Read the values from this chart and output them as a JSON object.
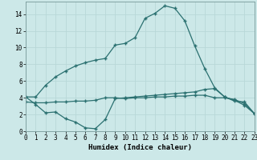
{
  "xlabel": "Humidex (Indice chaleur)",
  "bg_color": "#cce8e8",
  "grid_color": "#b8d8d8",
  "line_color": "#2a7070",
  "line1_x": [
    0,
    1,
    2,
    3,
    4,
    5,
    6,
    7,
    8,
    9,
    10,
    11,
    12,
    13,
    14,
    15,
    16,
    17,
    18,
    19,
    20,
    21,
    22,
    23
  ],
  "line1_y": [
    4.1,
    4.1,
    5.5,
    6.5,
    7.2,
    7.8,
    8.2,
    8.5,
    8.7,
    10.3,
    10.5,
    11.2,
    13.5,
    14.1,
    15.0,
    14.7,
    13.2,
    10.2,
    7.5,
    5.2,
    4.1,
    3.7,
    3.1,
    2.1
  ],
  "line2_x": [
    0,
    1,
    2,
    3,
    4,
    5,
    6,
    7,
    8,
    9,
    10,
    11,
    12,
    13,
    14,
    15,
    16,
    17,
    18,
    19,
    20,
    21,
    22,
    23
  ],
  "line2_y": [
    4.1,
    3.2,
    2.2,
    2.3,
    1.5,
    1.1,
    0.4,
    0.3,
    1.4,
    3.9,
    4.0,
    4.1,
    4.2,
    4.3,
    4.4,
    4.5,
    4.6,
    4.7,
    5.0,
    5.1,
    4.1,
    3.6,
    3.5,
    2.1
  ],
  "line3_x": [
    0,
    1,
    2,
    3,
    4,
    5,
    6,
    7,
    8,
    9,
    10,
    11,
    12,
    13,
    14,
    15,
    16,
    17,
    18,
    19,
    20,
    21,
    22,
    23
  ],
  "line3_y": [
    3.5,
    3.4,
    3.4,
    3.5,
    3.5,
    3.6,
    3.6,
    3.7,
    4.0,
    4.0,
    3.9,
    4.0,
    4.0,
    4.1,
    4.1,
    4.2,
    4.2,
    4.3,
    4.3,
    4.0,
    4.0,
    3.8,
    3.3,
    2.1
  ],
  "xlim": [
    0,
    23
  ],
  "ylim": [
    0,
    15.5
  ],
  "yticks": [
    0,
    2,
    4,
    6,
    8,
    10,
    12,
    14
  ],
  "xticks": [
    0,
    1,
    2,
    3,
    4,
    5,
    6,
    7,
    8,
    9,
    10,
    11,
    12,
    13,
    14,
    15,
    16,
    17,
    18,
    19,
    20,
    21,
    22,
    23
  ],
  "xlabel_fontsize": 6.5,
  "tick_fontsize": 5.5,
  "marker": "+",
  "markersize": 3.5,
  "linewidth": 0.9
}
